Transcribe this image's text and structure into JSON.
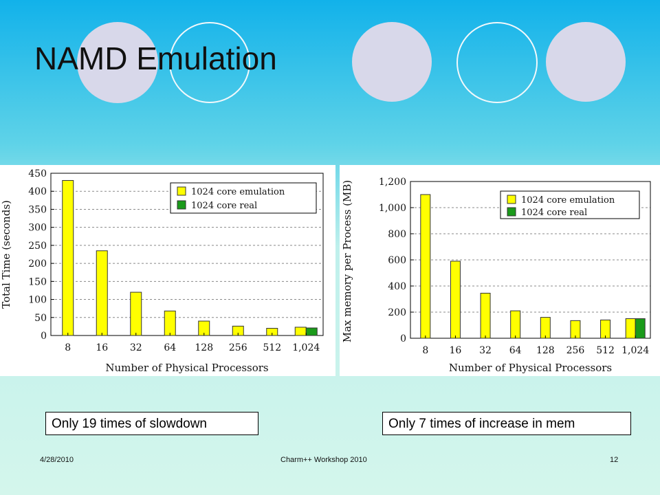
{
  "slide": {
    "title": "NAMD Emulation",
    "note_left": "Only 19 times of slowdown",
    "note_right": "Only 7 times of increase in mem",
    "footer_date": "4/28/2010",
    "footer_center": "Charm++ Workshop 2010",
    "footer_page": "12"
  },
  "colors": {
    "emulation": "#ffff00",
    "real": "#1a9a1a",
    "circle_fill": "#d8d8ea"
  },
  "chart_data": [
    {
      "type": "bar",
      "categories": [
        "8",
        "16",
        "32",
        "64",
        "128",
        "256",
        "512",
        "1,024"
      ],
      "series": [
        {
          "name": "1024 core emulation",
          "values": [
            430,
            235,
            120,
            68,
            40,
            26,
            20,
            23
          ]
        },
        {
          "name": "1024 core real",
          "values": [
            null,
            null,
            null,
            null,
            null,
            null,
            null,
            21
          ]
        }
      ],
      "xlabel": "Number of Physical Processors",
      "ylabel": "Total Time (seconds)",
      "ylim": [
        0,
        450
      ],
      "yticks": [
        "0",
        "50",
        "100",
        "150",
        "200",
        "250",
        "300",
        "350",
        "400",
        "450"
      ],
      "grid": true,
      "legend": "top-right"
    },
    {
      "type": "bar",
      "categories": [
        "8",
        "16",
        "32",
        "64",
        "128",
        "256",
        "512",
        "1,024"
      ],
      "series": [
        {
          "name": "1024 core emulation",
          "values": [
            1100,
            590,
            345,
            210,
            160,
            135,
            140,
            150
          ]
        },
        {
          "name": "1024 core real",
          "values": [
            null,
            null,
            null,
            null,
            null,
            null,
            null,
            150
          ]
        }
      ],
      "xlabel": "Number of Physical Processors",
      "ylabel": "Max memory per Process (MB)",
      "ylim": [
        0,
        1200
      ],
      "yticks": [
        "0",
        "200",
        "400",
        "600",
        "800",
        "1,000",
        "1,200"
      ],
      "grid": true,
      "legend": "top-right"
    }
  ]
}
